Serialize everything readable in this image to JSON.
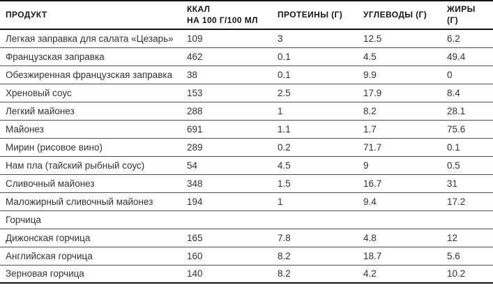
{
  "colors": {
    "background": "#ffffff",
    "body_text": "#333333",
    "header_text": "#161616",
    "strong_line": "#111111",
    "thin_line": "#4d4d4d"
  },
  "table": {
    "columns": {
      "product": "ПРОДУКТ",
      "kcal_line1": "ККАЛ",
      "kcal_line2": "НА 100 Г/100 МЛ",
      "protein": "ПРОТЕИНЫ (Г)",
      "carbs": "УГЛЕВОДЫ (Г)",
      "fat": "ЖИРЫ (Г)"
    },
    "rows": [
      {
        "product": "Легкая заправка для салата «Цезарь»",
        "kcal": "109",
        "protein": "3",
        "carbs": "12.5",
        "fat": "6.2"
      },
      {
        "product": "Французская заправка",
        "kcal": "462",
        "protein": "0.1",
        "carbs": "4.5",
        "fat": "49.4"
      },
      {
        "product": "Обезжиренная французская заправка",
        "kcal": "38",
        "protein": "0.1",
        "carbs": "9.9",
        "fat": "0"
      },
      {
        "product": "Хреновый соус",
        "kcal": "153",
        "protein": "2.5",
        "carbs": "17.9",
        "fat": "8.4"
      },
      {
        "product": "Легкий майонез",
        "kcal": "288",
        "protein": "1",
        "carbs": "8.2",
        "fat": "28.1"
      },
      {
        "product": "Майонез",
        "kcal": "691",
        "protein": "1.1",
        "carbs": "1.7",
        "fat": "75.6"
      },
      {
        "product": "Мирин (рисовое вино)",
        "kcal": "289",
        "protein": "0.2",
        "carbs": "71.7",
        "fat": "0.1"
      },
      {
        "product": "Нам пла (тайский рыбный соус)",
        "kcal": "54",
        "protein": "4.5",
        "carbs": "9",
        "fat": "0.5"
      },
      {
        "product": "Сливочный майонез",
        "kcal": "348",
        "protein": "1.5",
        "carbs": "16.7",
        "fat": "31"
      },
      {
        "product": "Маложирный сливочный майонез",
        "kcal": "194",
        "protein": "1",
        "carbs": "9.4",
        "fat": "17.2"
      },
      {
        "product": "Горчица",
        "kcal": "",
        "protein": "",
        "carbs": "",
        "fat": "",
        "section": true
      },
      {
        "product": "Дижонская горчица",
        "kcal": "165",
        "protein": "7.8",
        "carbs": "4.8",
        "fat": "12"
      },
      {
        "product": "Английская горчица",
        "kcal": "160",
        "protein": "8.2",
        "carbs": "18.7",
        "fat": "5.6"
      },
      {
        "product": "Зерновая горчица",
        "kcal": "140",
        "protein": "8.2",
        "carbs": "4.2",
        "fat": "10.2"
      }
    ]
  }
}
